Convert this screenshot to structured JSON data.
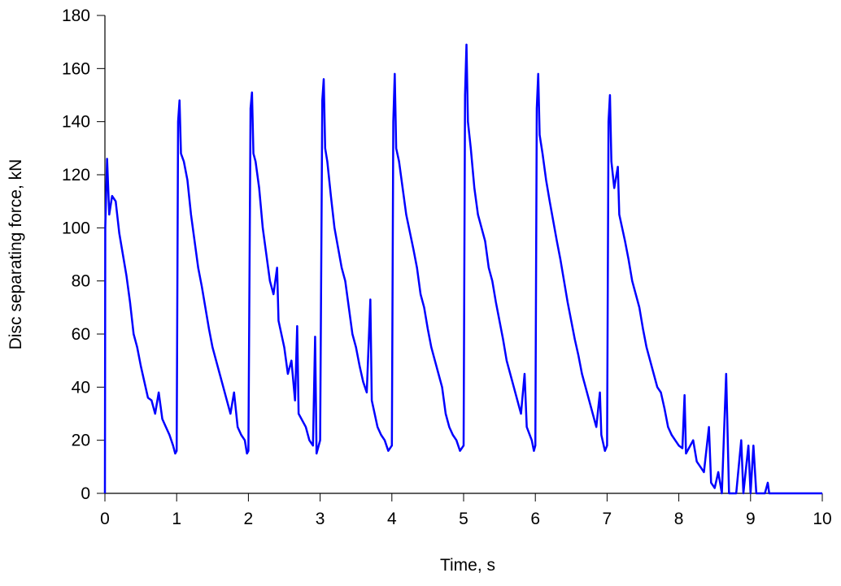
{
  "chart_data": {
    "type": "line",
    "xlabel": "Time, s",
    "ylabel": "Disc separating force, kN",
    "xlim": [
      0,
      10
    ],
    "xticks": [
      0,
      1,
      2,
      3,
      4,
      5,
      6,
      7,
      8,
      9,
      10
    ],
    "ylim": [
      0,
      180
    ],
    "yticks": [
      0,
      20,
      40,
      60,
      80,
      100,
      120,
      140,
      160,
      180
    ],
    "grid": false,
    "series": [
      {
        "color": "#0000ff",
        "x": [
          0,
          0.005,
          0.03,
          0.06,
          0.1,
          0.15,
          0.2,
          0.3,
          0.35,
          0.4,
          0.45,
          0.5,
          0.55,
          0.6,
          0.65,
          0.7,
          0.75,
          0.8,
          0.85,
          0.9,
          0.95,
          0.98,
          1.0,
          1.02,
          1.04,
          1.06,
          1.1,
          1.15,
          1.2,
          1.25,
          1.3,
          1.35,
          1.4,
          1.45,
          1.5,
          1.55,
          1.6,
          1.65,
          1.7,
          1.75,
          1.8,
          1.85,
          1.9,
          1.95,
          1.98,
          2.0,
          2.03,
          2.05,
          2.07,
          2.1,
          2.15,
          2.2,
          2.25,
          2.3,
          2.35,
          2.4,
          2.42,
          2.5,
          2.55,
          2.6,
          2.65,
          2.68,
          2.7,
          2.8,
          2.85,
          2.9,
          2.93,
          2.95,
          3.0,
          3.03,
          3.05,
          3.07,
          3.1,
          3.15,
          3.2,
          3.3,
          3.35,
          3.4,
          3.45,
          3.5,
          3.55,
          3.6,
          3.65,
          3.7,
          3.72,
          3.8,
          3.85,
          3.9,
          3.95,
          4.0,
          4.02,
          4.04,
          4.06,
          4.1,
          4.15,
          4.2,
          4.3,
          4.35,
          4.4,
          4.45,
          4.5,
          4.55,
          4.6,
          4.65,
          4.7,
          4.75,
          4.8,
          4.85,
          4.9,
          4.95,
          5.0,
          5.02,
          5.04,
          5.06,
          5.1,
          5.15,
          5.2,
          5.3,
          5.35,
          5.4,
          5.45,
          5.5,
          5.55,
          5.6,
          5.65,
          5.7,
          5.75,
          5.8,
          5.85,
          5.88,
          5.95,
          5.98,
          6.0,
          6.02,
          6.04,
          6.06,
          6.1,
          6.15,
          6.2,
          6.3,
          6.35,
          6.4,
          6.45,
          6.5,
          6.55,
          6.6,
          6.65,
          6.7,
          6.75,
          6.8,
          6.85,
          6.9,
          6.92,
          6.97,
          7.0,
          7.02,
          7.04,
          7.06,
          7.1,
          7.15,
          7.17,
          7.25,
          7.3,
          7.35,
          7.4,
          7.45,
          7.5,
          7.55,
          7.6,
          7.65,
          7.7,
          7.75,
          7.8,
          7.85,
          7.9,
          7.95,
          8.0,
          8.05,
          8.08,
          8.1,
          8.2,
          8.25,
          8.3,
          8.35,
          8.42,
          8.45,
          8.5,
          8.55,
          8.6,
          8.66,
          8.7,
          8.8,
          8.87,
          8.9,
          8.97,
          9.0,
          9.04,
          9.08,
          9.2,
          9.24,
          9.26,
          10
        ],
        "values": [
          0,
          100,
          126,
          105,
          112,
          110,
          98,
          82,
          72,
          60,
          55,
          48,
          42,
          36,
          35,
          30,
          38,
          28,
          25,
          22,
          18,
          15,
          16,
          140,
          148,
          128,
          125,
          118,
          105,
          95,
          85,
          78,
          70,
          62,
          55,
          50,
          45,
          40,
          35,
          30,
          38,
          25,
          22,
          20,
          15,
          16,
          145,
          151,
          128,
          125,
          115,
          100,
          90,
          80,
          75,
          85,
          65,
          55,
          45,
          50,
          35,
          63,
          30,
          25,
          20,
          18,
          59,
          15,
          20,
          148,
          156,
          130,
          125,
          112,
          100,
          85,
          80,
          70,
          60,
          55,
          48,
          42,
          38,
          73,
          35,
          25,
          22,
          20,
          16,
          18,
          140,
          158,
          130,
          125,
          115,
          105,
          92,
          85,
          75,
          70,
          62,
          55,
          50,
          45,
          40,
          30,
          25,
          22,
          20,
          16,
          18,
          150,
          169,
          140,
          130,
          115,
          105,
          95,
          85,
          80,
          72,
          65,
          58,
          50,
          45,
          40,
          35,
          30,
          45,
          25,
          20,
          16,
          18,
          145,
          158,
          135,
          128,
          118,
          110,
          95,
          88,
          80,
          72,
          65,
          58,
          52,
          45,
          40,
          35,
          30,
          25,
          38,
          22,
          16,
          18,
          140,
          150,
          125,
          115,
          123,
          105,
          95,
          88,
          80,
          75,
          70,
          62,
          55,
          50,
          45,
          40,
          38,
          32,
          25,
          22,
          20,
          18,
          17,
          37,
          15,
          20,
          12,
          10,
          8,
          25,
          4,
          2,
          8,
          0,
          45,
          0,
          0,
          20,
          0,
          18,
          0,
          18,
          0,
          0,
          4,
          0,
          0
        ]
      }
    ]
  }
}
